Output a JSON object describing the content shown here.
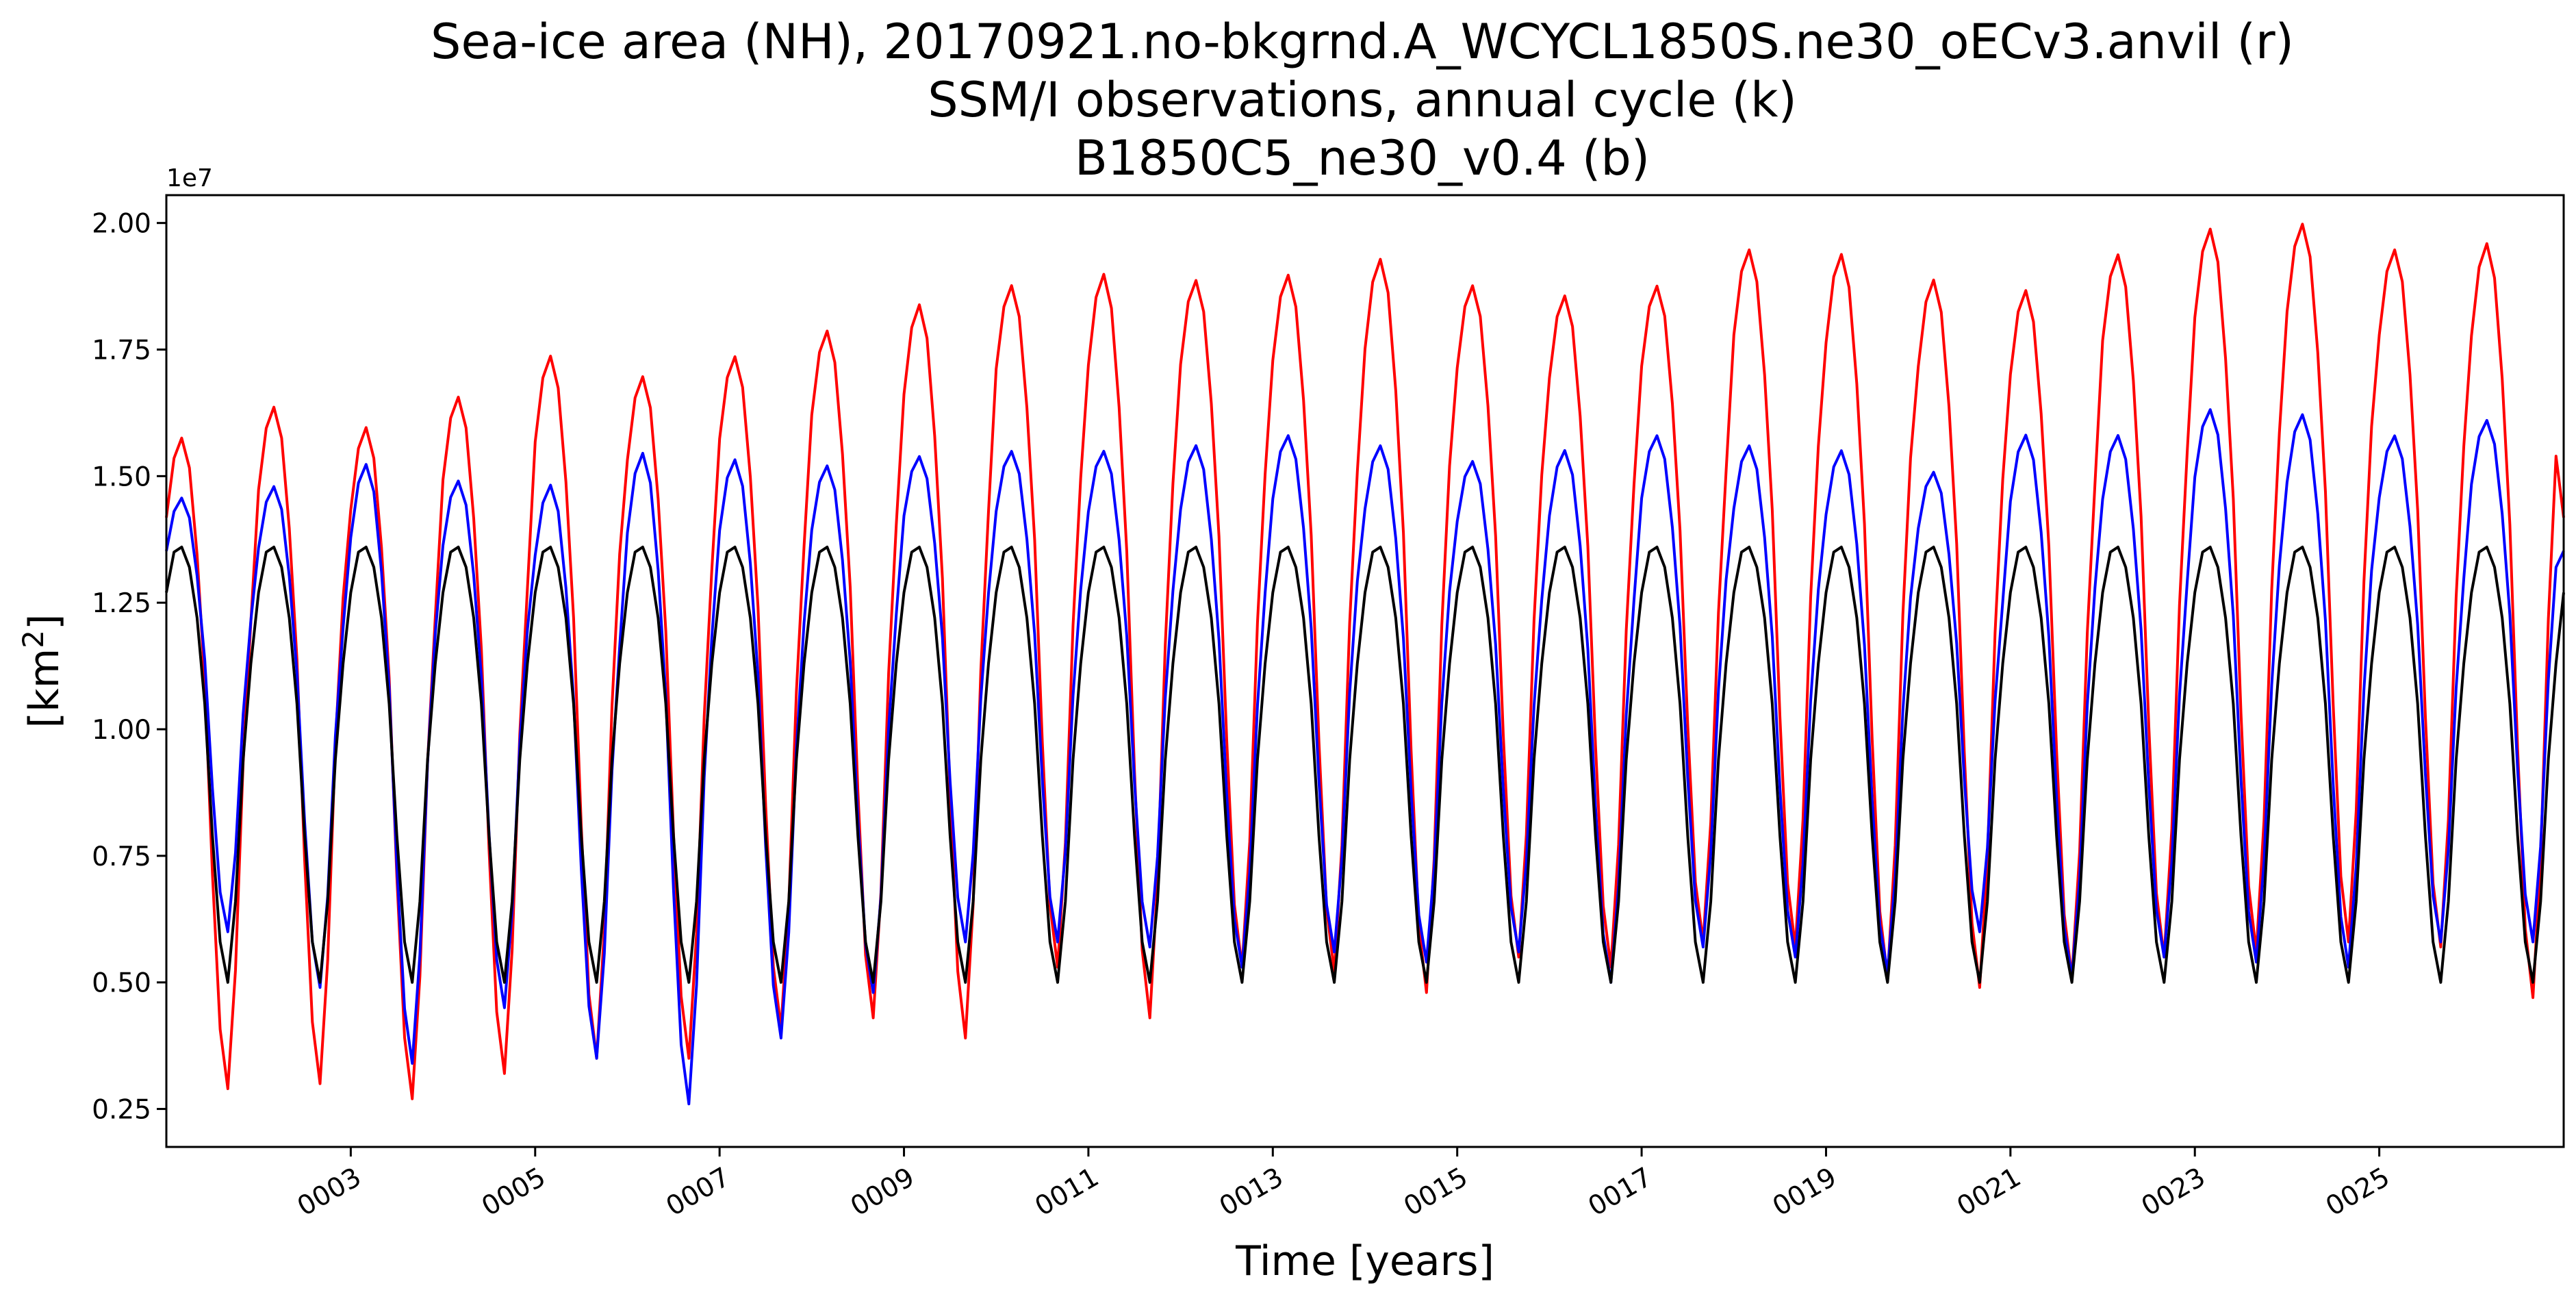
{
  "chart_data": {
    "type": "line",
    "title_lines": [
      "Sea-ice area (NH), 20170921.no-bkgrnd.A_WCYCL1850S.ne30_oECv3.anvil (r)",
      "SSM/I observations, annual cycle (k)",
      "B1850C5_ne30_v0.4 (b)"
    ],
    "xlabel": "Time [years]",
    "ylabel_base": "[km",
    "ylabel_sup": "2",
    "ylabel_end": "]",
    "y_offset_label": "1e7",
    "y_scale": 10000000,
    "xlim": [
      1.0,
      27.0
    ],
    "ylim": [
      0.175,
      2.055
    ],
    "y_ticks": [
      0.25,
      0.5,
      0.75,
      1.0,
      1.25,
      1.5,
      1.75,
      2.0
    ],
    "y_tick_labels": [
      "0.25",
      "0.50",
      "0.75",
      "1.00",
      "1.25",
      "1.50",
      "1.75",
      "2.00"
    ],
    "x_ticks": [
      3,
      5,
      7,
      9,
      11,
      13,
      15,
      17,
      19,
      21,
      23,
      25
    ],
    "x_tick_labels": [
      "0003",
      "0005",
      "0007",
      "0009",
      "0011",
      "0013",
      "0015",
      "0017",
      "0019",
      "0021",
      "0023",
      "0025"
    ],
    "months_per_year": 12,
    "grid": false,
    "series": [
      {
        "name": "20170921.no-bkgrnd.A_WCYCL1850S.ne30_oECv3.anvil",
        "color": "#ff0000",
        "annual_max": [
          1.55,
          1.61,
          1.57,
          1.63,
          1.71,
          1.67,
          1.71,
          1.76,
          1.81,
          1.85,
          1.87,
          1.86,
          1.87,
          1.9,
          1.85,
          1.83,
          1.85,
          1.92,
          1.91,
          1.86,
          1.84,
          1.91,
          1.96,
          1.97,
          1.92,
          1.93
        ],
        "annual_min": [
          0.29,
          0.3,
          0.27,
          0.32,
          0.35,
          0.35,
          0.41,
          0.43,
          0.39,
          0.53,
          0.43,
          0.53,
          0.52,
          0.48,
          0.55,
          0.53,
          0.58,
          0.57,
          0.51,
          0.49,
          0.51,
          0.55,
          0.56,
          0.58,
          0.57,
          0.47
        ]
      },
      {
        "name": "B1850C5_ne30_v0.4",
        "color": "#0000ff",
        "annual_max": [
          1.44,
          1.46,
          1.5,
          1.47,
          1.46,
          1.52,
          1.51,
          1.5,
          1.52,
          1.53,
          1.53,
          1.54,
          1.56,
          1.54,
          1.51,
          1.53,
          1.56,
          1.54,
          1.53,
          1.49,
          1.56,
          1.56,
          1.61,
          1.6,
          1.56,
          1.59
        ],
        "annual_min": [
          0.6,
          0.49,
          0.34,
          0.45,
          0.35,
          0.26,
          0.39,
          0.48,
          0.58,
          0.58,
          0.57,
          0.53,
          0.56,
          0.54,
          0.56,
          0.5,
          0.57,
          0.55,
          0.52,
          0.6,
          0.51,
          0.55,
          0.54,
          0.53,
          0.58,
          0.58
        ]
      },
      {
        "name": "SSM/I observations, annual cycle",
        "color": "#000000",
        "monthly_cycle": [
          1.27,
          1.35,
          1.36,
          1.32,
          1.22,
          1.05,
          0.79,
          0.58,
          0.5,
          0.66,
          0.94,
          1.13
        ]
      }
    ]
  }
}
